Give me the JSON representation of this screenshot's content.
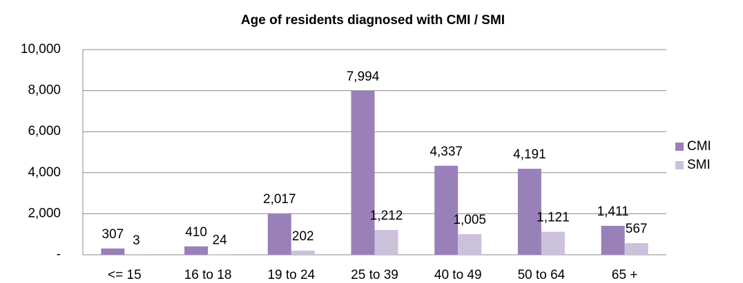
{
  "chart_data": {
    "type": "bar",
    "title": "Age of residents diagnosed with CMI / SMI",
    "categories": [
      "<= 15",
      "16 to 18",
      "19 to 24",
      "25 to 39",
      "40 to 49",
      "50 to 64",
      "65 +"
    ],
    "series": [
      {
        "name": "CMI",
        "color": "#9a80b9",
        "values": [
          307,
          410,
          2017,
          7994,
          4337,
          4191,
          1411
        ],
        "value_labels": [
          "307",
          "410",
          "2,017",
          "7,994",
          "4,337",
          "4,191",
          "1,411"
        ]
      },
      {
        "name": "SMI",
        "color": "#ccc1da",
        "values": [
          3,
          24,
          202,
          1212,
          1005,
          1121,
          567
        ],
        "value_labels": [
          "3",
          "24",
          "202",
          "1,212",
          "1,005",
          "1,121",
          "567"
        ]
      }
    ],
    "ylim": [
      0,
      10000
    ],
    "yticks": [
      {
        "value": 0,
        "label": "-"
      },
      {
        "value": 2000,
        "label": "2,000"
      },
      {
        "value": 4000,
        "label": "4,000"
      },
      {
        "value": 6000,
        "label": "6,000"
      },
      {
        "value": 8000,
        "label": "8,000"
      },
      {
        "value": 10000,
        "label": "10,000"
      }
    ],
    "grid": true,
    "legend": "right"
  }
}
